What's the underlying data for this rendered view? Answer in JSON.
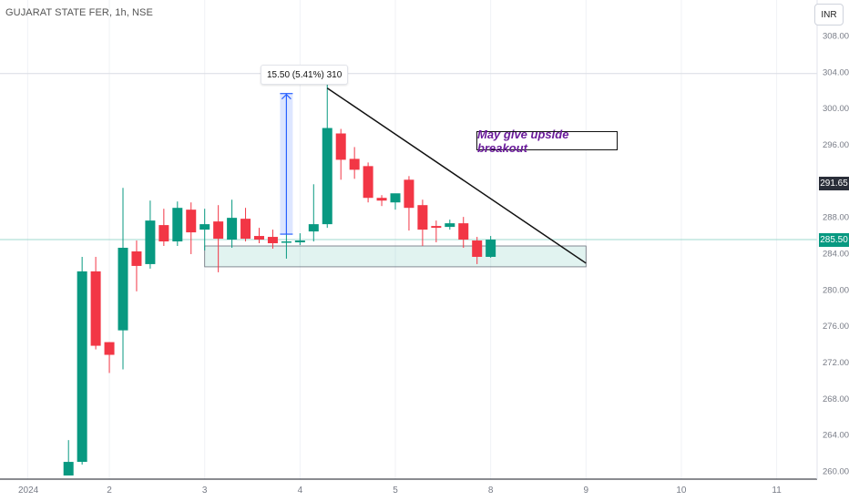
{
  "header": {
    "title": "GUJARAT STATE FER, 1h, NSE",
    "currency": "INR"
  },
  "chart_data": {
    "type": "candlestick",
    "ylim": [
      259.5,
      309.5
    ],
    "yticks": [
      260,
      264,
      268,
      272,
      276,
      280,
      284,
      288,
      296,
      300,
      304,
      308
    ],
    "ytick_labels": [
      "260.00",
      "264.00",
      "268.00",
      "272.00",
      "276.00",
      "280.00",
      "284.00",
      "288.00",
      "296.00",
      "300.00",
      "304.00",
      "308.00"
    ],
    "xticks": [
      {
        "label": "2024",
        "x": 1
      },
      {
        "label": "2",
        "x": 7
      },
      {
        "label": "3",
        "x": 14
      },
      {
        "label": "4",
        "x": 21
      },
      {
        "label": "5",
        "x": 28
      },
      {
        "label": "8",
        "x": 35
      },
      {
        "label": "9",
        "x": 42
      },
      {
        "label": "10",
        "x": 49
      },
      {
        "label": "11",
        "x": 56
      }
    ],
    "candles": [
      {
        "x": 4,
        "o": 259.5,
        "h": 263.4,
        "l": 259.5,
        "c": 261.0
      },
      {
        "x": 5,
        "o": 261.0,
        "h": 283.6,
        "l": 260.7,
        "c": 282.0
      },
      {
        "x": 6,
        "o": 282.0,
        "h": 283.6,
        "l": 273.4,
        "c": 273.8
      },
      {
        "x": 7,
        "o": 274.2,
        "h": 274.2,
        "l": 270.8,
        "c": 272.8
      },
      {
        "x": 8,
        "o": 275.5,
        "h": 291.2,
        "l": 271.2,
        "c": 284.6
      },
      {
        "x": 9,
        "o": 284.2,
        "h": 285.4,
        "l": 279.8,
        "c": 282.6
      },
      {
        "x": 10,
        "o": 282.8,
        "h": 289.8,
        "l": 282.3,
        "c": 287.6
      },
      {
        "x": 11,
        "o": 287.1,
        "h": 288.9,
        "l": 284.8,
        "c": 285.3
      },
      {
        "x": 12,
        "o": 285.3,
        "h": 289.7,
        "l": 284.8,
        "c": 289.0
      },
      {
        "x": 13,
        "o": 288.8,
        "h": 289.6,
        "l": 283.9,
        "c": 286.3
      },
      {
        "x": 14,
        "o": 286.6,
        "h": 288.9,
        "l": 284.3,
        "c": 287.2
      },
      {
        "x": 15,
        "o": 287.5,
        "h": 289.3,
        "l": 281.9,
        "c": 285.6
      },
      {
        "x": 16,
        "o": 285.5,
        "h": 289.9,
        "l": 284.6,
        "c": 287.9
      },
      {
        "x": 17,
        "o": 287.8,
        "h": 289.0,
        "l": 285.3,
        "c": 285.6
      },
      {
        "x": 18,
        "o": 285.9,
        "h": 286.8,
        "l": 285.1,
        "c": 285.5
      },
      {
        "x": 19,
        "o": 285.8,
        "h": 286.6,
        "l": 284.5,
        "c": 285.1
      },
      {
        "x": 20,
        "o": 285.3,
        "h": 286.1,
        "l": 283.4,
        "c": 285.3
      },
      {
        "x": 21,
        "o": 285.2,
        "h": 286.2,
        "l": 284.9,
        "c": 285.4
      },
      {
        "x": 22,
        "o": 286.4,
        "h": 291.6,
        "l": 285.3,
        "c": 287.2
      },
      {
        "x": 23,
        "o": 287.2,
        "h": 303.8,
        "l": 286.8,
        "c": 297.8
      },
      {
        "x": 24,
        "o": 297.2,
        "h": 297.7,
        "l": 292.1,
        "c": 294.3
      },
      {
        "x": 25,
        "o": 294.4,
        "h": 295.7,
        "l": 292.2,
        "c": 293.2
      },
      {
        "x": 26,
        "o": 293.6,
        "h": 294.0,
        "l": 289.6,
        "c": 290.1
      },
      {
        "x": 27,
        "o": 290.1,
        "h": 290.4,
        "l": 289.2,
        "c": 289.8
      },
      {
        "x": 28,
        "o": 289.6,
        "h": 290.3,
        "l": 288.8,
        "c": 290.6
      },
      {
        "x": 29,
        "o": 292.1,
        "h": 292.5,
        "l": 286.5,
        "c": 289.0
      },
      {
        "x": 30,
        "o": 289.3,
        "h": 289.9,
        "l": 284.8,
        "c": 286.6
      },
      {
        "x": 31,
        "o": 287.0,
        "h": 287.6,
        "l": 285.2,
        "c": 286.8
      },
      {
        "x": 32,
        "o": 286.9,
        "h": 287.7,
        "l": 286.6,
        "c": 287.3
      },
      {
        "x": 33,
        "o": 287.3,
        "h": 288.0,
        "l": 284.6,
        "c": 285.5
      },
      {
        "x": 34,
        "o": 285.4,
        "h": 285.8,
        "l": 282.8,
        "c": 283.6
      },
      {
        "x": 35,
        "o": 283.6,
        "h": 285.9,
        "l": 283.5,
        "c": 285.5
      }
    ],
    "price_tags": [
      {
        "label": "291.65",
        "value": 291.65,
        "color": "#2a2e39"
      },
      {
        "label": "285.50",
        "value": 285.5,
        "color": "#089981"
      }
    ],
    "reference_lines": [
      {
        "value": 303.8,
        "color": "#d9dce3"
      },
      {
        "value": 285.5,
        "color": "#9fd9cf"
      }
    ],
    "support_zone": {
      "x_start": 14,
      "x_end": 42,
      "y_low": 282.5,
      "y_high": 284.8
    },
    "trendline": {
      "x_start": 23,
      "y_start": 302.2,
      "x_end": 42,
      "y_end": 282.9
    },
    "measure": {
      "x": 20,
      "y_from": 286.1,
      "y_to": 301.6,
      "label": "15.50 (5.41%) 310"
    },
    "annotation": {
      "text": "May give upside breakout"
    },
    "colors": {
      "up": "#089981",
      "down": "#f23645",
      "measure": "#2962ff"
    }
  }
}
